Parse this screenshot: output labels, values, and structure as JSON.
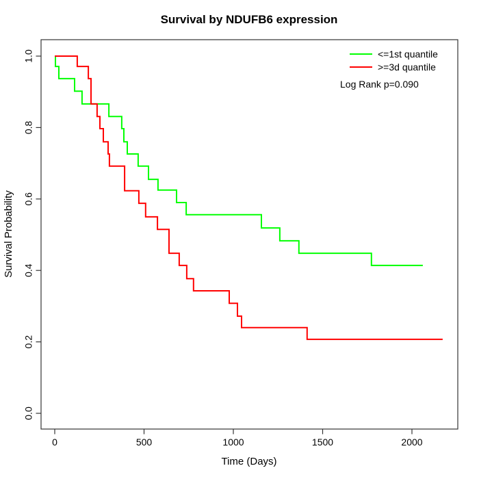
{
  "title": "Survival by NDUFB6 expression",
  "chart_data": {
    "type": "line",
    "subtype": "kaplan-meier-step",
    "title": "Survival by NDUFB6 expression",
    "xlabel": "Time (Days)",
    "ylabel": "Survival Probability",
    "xlim": [
      0,
      2256
    ],
    "ylim": [
      0.0,
      1.0
    ],
    "xticks": [
      0,
      500,
      1000,
      1500,
      2000
    ],
    "yticks": [
      "0.0",
      "0.2",
      "0.4",
      "0.6",
      "0.8",
      "1.0"
    ],
    "grid": false,
    "legend_position": "top-right",
    "annotation": "Log Rank p=0.090",
    "series": [
      {
        "name": "<=1st quantile",
        "color": "#00FF00",
        "start": {
          "time": 0,
          "survival": 1.0
        },
        "steps": [
          [
            4,
            0.971
          ],
          [
            23,
            0.937
          ],
          [
            111,
            0.902
          ],
          [
            153,
            0.866
          ],
          [
            303,
            0.831
          ],
          [
            375,
            0.797
          ],
          [
            387,
            0.76
          ],
          [
            406,
            0.726
          ],
          [
            467,
            0.692
          ],
          [
            525,
            0.655
          ],
          [
            578,
            0.625
          ],
          [
            682,
            0.59
          ],
          [
            736,
            0.556
          ],
          [
            1157,
            0.519
          ],
          [
            1260,
            0.483
          ],
          [
            1367,
            0.448
          ],
          [
            1773,
            0.414
          ]
        ],
        "end_time": 2061,
        "final_survival": 0.414
      },
      {
        "name": ">=3d quantile",
        "color": "#FF0000",
        "start": {
          "time": 0,
          "survival": 1.0
        },
        "steps": [
          [
            126,
            0.971
          ],
          [
            188,
            0.937
          ],
          [
            203,
            0.866
          ],
          [
            237,
            0.831
          ],
          [
            253,
            0.797
          ],
          [
            272,
            0.76
          ],
          [
            299,
            0.726
          ],
          [
            306,
            0.692
          ],
          [
            391,
            0.623
          ],
          [
            471,
            0.588
          ],
          [
            509,
            0.55
          ],
          [
            575,
            0.515
          ],
          [
            640,
            0.448
          ],
          [
            697,
            0.414
          ],
          [
            739,
            0.377
          ],
          [
            777,
            0.343
          ],
          [
            977,
            0.308
          ],
          [
            1023,
            0.272
          ],
          [
            1046,
            0.24
          ],
          [
            1413,
            0.207
          ]
        ],
        "end_time": 2172,
        "final_survival": 0.207
      }
    ]
  }
}
